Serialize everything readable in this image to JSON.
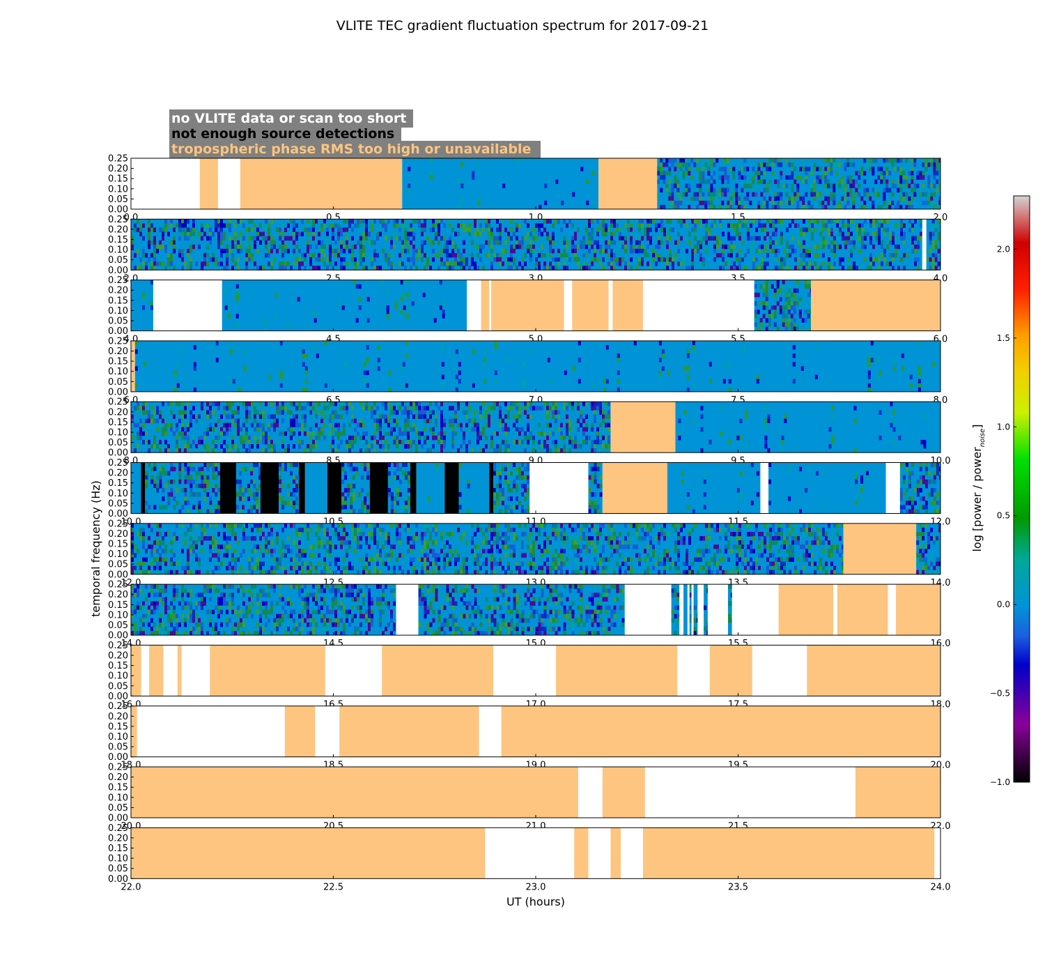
{
  "chart_data": {
    "type": "heatmap",
    "title": "VLITE TEC gradient fluctuation spectrum for 2017-09-21",
    "xlabel": "UT (hours)",
    "ylabel": "temporal frequency (Hz)",
    "ylim": [
      0,
      0.25
    ],
    "yticks": [
      "0.00",
      "0.05",
      "0.10",
      "0.15",
      "0.20",
      "0.25"
    ],
    "legend": [
      {
        "label": "no VLITE data or scan too short",
        "color": "#ffffff"
      },
      {
        "label": "not enough source detections",
        "color": "#000000"
      },
      {
        "label": "tropospheric phase RMS too high or unavailable",
        "color": "#fdc57f"
      }
    ],
    "colorbar": {
      "label": "log [power / power_noise]",
      "range": [
        -1.0,
        2.3
      ],
      "ticks": [
        "−1.0",
        "−0.5",
        "0.0",
        "0.5",
        "1.0",
        "1.5",
        "2.0"
      ],
      "tick_values": [
        -1.0,
        -0.5,
        0.0,
        0.5,
        1.0,
        1.5,
        2.0
      ]
    },
    "panels": [
      {
        "range": [
          0,
          2
        ],
        "xticks": [
          "0.0",
          "0.5",
          "1.0",
          "1.5",
          "2.0"
        ],
        "segments": [
          [
            0,
            0.17,
            "none"
          ],
          [
            0.17,
            0.215,
            "trop"
          ],
          [
            0.215,
            0.27,
            "none"
          ],
          [
            0.27,
            0.67,
            "trop"
          ],
          [
            0.67,
            1.155,
            "data"
          ],
          [
            1.155,
            1.3,
            "trop"
          ],
          [
            1.3,
            2.0,
            "data"
          ]
        ]
      },
      {
        "range": [
          2,
          4
        ],
        "xticks": [
          "2.0",
          "2.5",
          "3.0",
          "3.5",
          "4.0"
        ],
        "segments": [
          [
            2.0,
            3.955,
            "data"
          ],
          [
            3.955,
            3.965,
            "none"
          ],
          [
            3.965,
            4.0,
            "data"
          ]
        ]
      },
      {
        "range": [
          4,
          6
        ],
        "xticks": [
          "4.0",
          "4.5",
          "5.0",
          "5.5",
          "6.0"
        ],
        "segments": [
          [
            4.0,
            4.055,
            "data"
          ],
          [
            4.055,
            4.225,
            "none"
          ],
          [
            4.225,
            4.83,
            "data"
          ],
          [
            4.83,
            4.865,
            "none"
          ],
          [
            4.865,
            4.885,
            "trop"
          ],
          [
            4.885,
            4.89,
            "none"
          ],
          [
            4.89,
            5.07,
            "trop"
          ],
          [
            5.07,
            5.09,
            "none"
          ],
          [
            5.09,
            5.18,
            "trop"
          ],
          [
            5.18,
            5.19,
            "none"
          ],
          [
            5.19,
            5.265,
            "trop"
          ],
          [
            5.265,
            5.54,
            "none"
          ],
          [
            5.54,
            5.68,
            "data"
          ],
          [
            5.68,
            6.0,
            "trop"
          ]
        ]
      },
      {
        "range": [
          6,
          8
        ],
        "xticks": [
          "6.0",
          "6.5",
          "7.0",
          "7.5",
          "8.0"
        ],
        "segments": [
          [
            6.0,
            6.01,
            "trop"
          ],
          [
            6.01,
            8.0,
            "data"
          ]
        ]
      },
      {
        "range": [
          8,
          10
        ],
        "xticks": [
          "8.0",
          "8.5",
          "9.0",
          "9.5",
          "10.0"
        ],
        "segments": [
          [
            8.0,
            9.185,
            "data"
          ],
          [
            9.185,
            9.345,
            "trop"
          ],
          [
            9.345,
            10.0,
            "data"
          ]
        ]
      },
      {
        "range": [
          10,
          12
        ],
        "xticks": [
          "10.0",
          "10.5",
          "11.0",
          "11.5",
          "12.0"
        ],
        "segments": [
          [
            10.0,
            10.025,
            "data"
          ],
          [
            10.025,
            10.035,
            "black"
          ],
          [
            10.035,
            10.22,
            "data"
          ],
          [
            10.22,
            10.26,
            "black"
          ],
          [
            10.26,
            10.32,
            "data"
          ],
          [
            10.32,
            10.365,
            "black"
          ],
          [
            10.365,
            10.415,
            "data"
          ],
          [
            10.415,
            10.43,
            "black"
          ],
          [
            10.43,
            10.485,
            "data"
          ],
          [
            10.485,
            10.52,
            "black"
          ],
          [
            10.52,
            10.59,
            "data"
          ],
          [
            10.59,
            10.635,
            "black"
          ],
          [
            10.635,
            10.69,
            "data"
          ],
          [
            10.69,
            10.705,
            "black"
          ],
          [
            10.705,
            10.775,
            "data"
          ],
          [
            10.775,
            10.81,
            "black"
          ],
          [
            10.81,
            10.885,
            "data"
          ],
          [
            10.885,
            10.895,
            "black"
          ],
          [
            10.895,
            10.985,
            "data"
          ],
          [
            10.985,
            11.13,
            "none"
          ],
          [
            11.13,
            11.165,
            "data"
          ],
          [
            11.165,
            11.325,
            "trop"
          ],
          [
            11.325,
            11.555,
            "data"
          ],
          [
            11.555,
            11.575,
            "none"
          ],
          [
            11.575,
            11.865,
            "data"
          ],
          [
            11.865,
            11.9,
            "none"
          ],
          [
            11.9,
            12.0,
            "data"
          ]
        ]
      },
      {
        "range": [
          12,
          14
        ],
        "xticks": [
          "12.0",
          "12.5",
          "13.0",
          "13.5",
          "14.0"
        ],
        "segments": [
          [
            12.0,
            13.76,
            "data"
          ],
          [
            13.76,
            13.94,
            "trop"
          ],
          [
            13.94,
            14.0,
            "data"
          ]
        ]
      },
      {
        "range": [
          14,
          16
        ],
        "xticks": [
          "14.0",
          "14.5",
          "15.0",
          "15.5",
          "16.0"
        ],
        "segments": [
          [
            14.0,
            14.655,
            "data"
          ],
          [
            14.655,
            14.71,
            "none"
          ],
          [
            14.71,
            15.22,
            "data"
          ],
          [
            15.22,
            15.335,
            "none"
          ],
          [
            15.335,
            15.355,
            "data"
          ],
          [
            15.355,
            15.365,
            "none"
          ],
          [
            15.365,
            15.375,
            "data"
          ],
          [
            15.375,
            15.38,
            "none"
          ],
          [
            15.38,
            15.385,
            "data"
          ],
          [
            15.385,
            15.39,
            "none"
          ],
          [
            15.39,
            15.4,
            "data"
          ],
          [
            15.4,
            15.415,
            "none"
          ],
          [
            15.415,
            15.425,
            "data"
          ],
          [
            15.425,
            15.475,
            "none"
          ],
          [
            15.475,
            15.485,
            "data"
          ],
          [
            15.485,
            15.6,
            "none"
          ],
          [
            15.6,
            15.735,
            "trop"
          ],
          [
            15.735,
            15.745,
            "none"
          ],
          [
            15.745,
            15.87,
            "trop"
          ],
          [
            15.87,
            15.89,
            "none"
          ],
          [
            15.89,
            16.0,
            "trop"
          ]
        ]
      },
      {
        "range": [
          16,
          18
        ],
        "xticks": [
          "16.0",
          "16.5",
          "17.0",
          "17.5",
          "18.0"
        ],
        "segments": [
          [
            16.0,
            16.025,
            "trop"
          ],
          [
            16.025,
            16.045,
            "none"
          ],
          [
            16.045,
            16.08,
            "trop"
          ],
          [
            16.08,
            16.115,
            "none"
          ],
          [
            16.115,
            16.125,
            "trop"
          ],
          [
            16.125,
            16.195,
            "none"
          ],
          [
            16.195,
            16.48,
            "trop"
          ],
          [
            16.48,
            16.62,
            "none"
          ],
          [
            16.62,
            16.895,
            "trop"
          ],
          [
            16.895,
            17.05,
            "none"
          ],
          [
            17.05,
            17.35,
            "trop"
          ],
          [
            17.35,
            17.43,
            "none"
          ],
          [
            17.43,
            17.535,
            "trop"
          ],
          [
            17.535,
            17.67,
            "none"
          ],
          [
            17.67,
            18.0,
            "trop"
          ]
        ]
      },
      {
        "range": [
          18,
          20
        ],
        "xticks": [
          "18.0",
          "18.5",
          "19.0",
          "19.5",
          "20.0"
        ],
        "segments": [
          [
            18.0,
            18.015,
            "trop"
          ],
          [
            18.015,
            18.38,
            "none"
          ],
          [
            18.38,
            18.455,
            "trop"
          ],
          [
            18.455,
            18.515,
            "none"
          ],
          [
            18.515,
            18.86,
            "trop"
          ],
          [
            18.86,
            18.915,
            "none"
          ],
          [
            18.915,
            20.0,
            "trop"
          ]
        ]
      },
      {
        "range": [
          20,
          22
        ],
        "xticks": [
          "20.0",
          "20.5",
          "21.0",
          "21.5",
          "22.0"
        ],
        "segments": [
          [
            20.0,
            21.105,
            "trop"
          ],
          [
            21.105,
            21.165,
            "none"
          ],
          [
            21.165,
            21.27,
            "trop"
          ],
          [
            21.27,
            21.79,
            "none"
          ],
          [
            21.79,
            22.0,
            "trop"
          ]
        ]
      },
      {
        "range": [
          22,
          24
        ],
        "xticks": [
          "22.0",
          "22.5",
          "23.0",
          "23.5",
          "24.0"
        ],
        "segments": [
          [
            22.0,
            22.875,
            "trop"
          ],
          [
            22.875,
            23.095,
            "none"
          ],
          [
            23.095,
            23.13,
            "trop"
          ],
          [
            23.13,
            23.185,
            "none"
          ],
          [
            23.185,
            23.21,
            "trop"
          ],
          [
            23.21,
            23.265,
            "none"
          ],
          [
            23.265,
            23.985,
            "trop"
          ],
          [
            23.985,
            24.0,
            "none"
          ]
        ]
      }
    ]
  },
  "colors": {
    "trop": "#fdc57f",
    "none": "#ffffff",
    "black": "#000000",
    "data_base": "#0093d5",
    "legend_box": "#808080"
  }
}
